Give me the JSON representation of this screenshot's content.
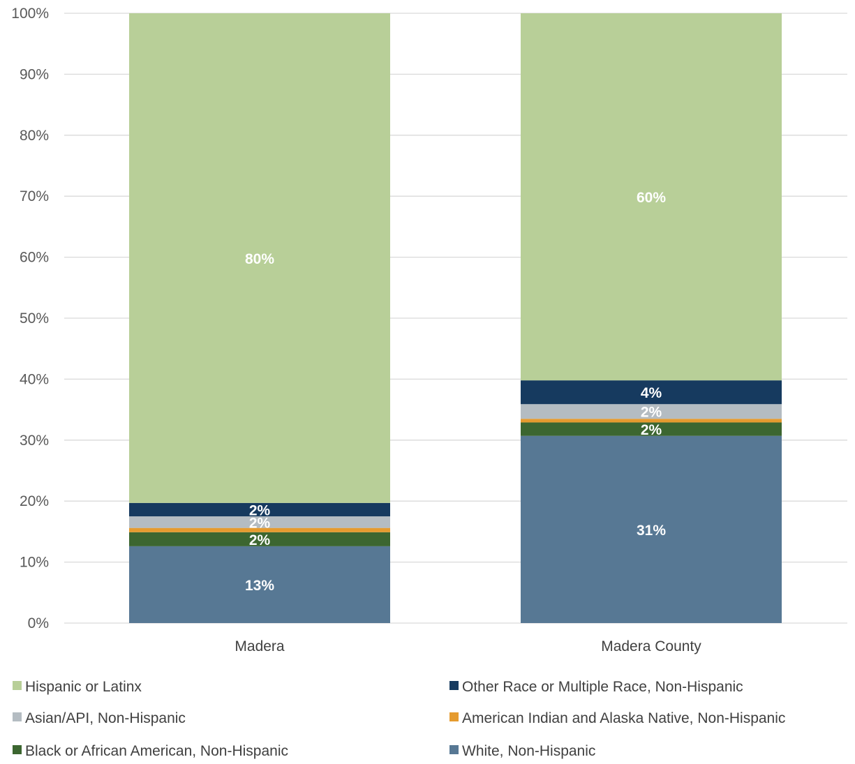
{
  "chart_data": {
    "type": "bar",
    "stacked": true,
    "categories": [
      "Madera",
      "Madera County"
    ],
    "series": [
      {
        "name": "White, Non-Hispanic",
        "values": [
          12.6,
          30.7
        ],
        "labels": [
          "13%",
          "31%"
        ],
        "color": "#577894"
      },
      {
        "name": "Black or African American, Non-Hispanic",
        "values": [
          2.3,
          2.2
        ],
        "labels": [
          "2%",
          "2%"
        ],
        "color": "#3c6630"
      },
      {
        "name": "American Indian and Alaska Native, Non-Hispanic",
        "values": [
          0.7,
          0.6
        ],
        "labels": [
          "",
          ""
        ],
        "color": "#e59b2f"
      },
      {
        "name": "Asian/API, Non-Hispanic",
        "values": [
          1.9,
          2.4
        ],
        "labels": [
          "2%",
          "2%"
        ],
        "color": "#b4bcc2"
      },
      {
        "name": "Other Race or Multiple Race, Non-Hispanic",
        "values": [
          2.2,
          3.9
        ],
        "labels": [
          "2%",
          "4%"
        ],
        "color": "#163a5f"
      },
      {
        "name": "Hispanic or Latinx",
        "values": [
          80.3,
          60.2
        ],
        "labels": [
          "80%",
          "60%"
        ],
        "color": "#b8cf98"
      }
    ],
    "yticks": [
      "0%",
      "10%",
      "20%",
      "30%",
      "40%",
      "50%",
      "60%",
      "70%",
      "80%",
      "90%",
      "100%"
    ],
    "ylim": [
      0,
      100
    ],
    "grid": true,
    "legend": {
      "position": "bottom",
      "order": [
        "Hispanic or Latinx",
        "Other Race or Multiple Race, Non-Hispanic",
        "Asian/API, Non-Hispanic",
        "American Indian and Alaska Native, Non-Hispanic",
        "Black or African American, Non-Hispanic",
        "White, Non-Hispanic"
      ]
    }
  }
}
